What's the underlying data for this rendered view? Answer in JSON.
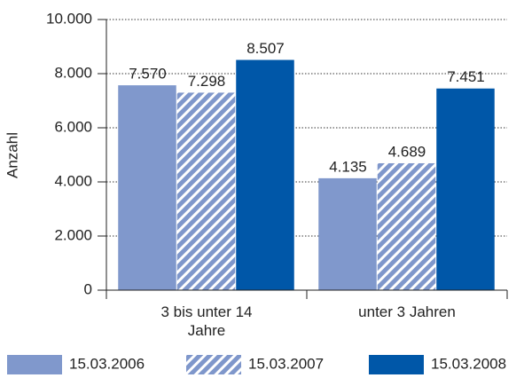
{
  "chart_data": {
    "type": "bar",
    "y_label": "Anzahl",
    "categories": [
      "3 bis unter 14 Jahre",
      "unter 3 Jahren"
    ],
    "series": [
      {
        "name": "15.03.2006",
        "color": "#8098cc",
        "values": [
          7570,
          4135
        ],
        "value_labels": [
          "7.570",
          "4.135"
        ]
      },
      {
        "name": "15.03.2007",
        "color": "#8098cc",
        "hatch": true,
        "values": [
          7298,
          4689
        ],
        "value_labels": [
          "7.298",
          "4.689"
        ]
      },
      {
        "name": "15.03.2008",
        "color": "#0057a8",
        "values": [
          8507,
          7451
        ],
        "value_labels": [
          "8.507",
          "7.451"
        ]
      }
    ],
    "ylim": [
      0,
      10000
    ],
    "yticks": [
      0,
      {
        "value": 2000,
        "label": "2.000"
      },
      {
        "value": 4000,
        "label": "4.000"
      },
      {
        "value": 6000,
        "label": "6.000"
      },
      {
        "value": 8000,
        "label": "8.000"
      },
      {
        "value": 10000,
        "label": "10.000"
      }
    ],
    "grid": true,
    "legend": "bottom"
  }
}
